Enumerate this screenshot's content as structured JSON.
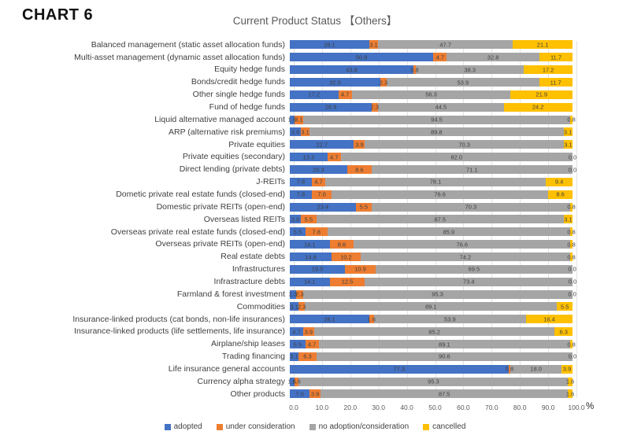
{
  "header": {
    "chart_label": "CHART 6",
    "title": "Current Product Status 【Others】"
  },
  "colors": {
    "adopted": "#4472C4",
    "under_consideration": "#ED7D31",
    "no_adoption_consideration": "#A5A5A5",
    "cancelled": "#FFC000"
  },
  "chart_data": {
    "type": "bar",
    "stacked": true,
    "orientation": "horizontal",
    "title": "Current Product Status 【Others】",
    "unit": "%",
    "xlim": [
      0,
      100
    ],
    "x_ticks": [
      0,
      10,
      20,
      30,
      40,
      50,
      60,
      70,
      80,
      90,
      100
    ],
    "x_tick_labels": [
      "0.0",
      "10.0",
      "20.0",
      "30.0",
      "40.0",
      "50.0",
      "60.0",
      "70.0",
      "80.0",
      "90.0",
      "100.0"
    ],
    "grid": true,
    "legend_position": "bottom",
    "value_labels": "one_decimal_inside_segments",
    "categories": [
      "Balanced management (static asset allocation funds)",
      "Multi-asset management (dynamic asset allocation funds)",
      "Equity hedge funds",
      "Bonds/credit hedge funds",
      "Other single hedge funds",
      "Fund of hedge funds",
      "Liquid alternative managed account",
      "ARP (alternative risk premiums)",
      "Private equities",
      "Private equities (secondary)",
      "Direct lending (private debts)",
      "J-REITs",
      "Dometic private real estate funds (closed-end)",
      "Domestic private REITs (open-end)",
      "Overseas listed REITs",
      "Overseas private real estate funds (closed-end)",
      "Overseas private REITs (open-end)",
      "Real estate debts",
      "Infrastructures",
      "Infrastracture debts",
      "Farmland & forest investment",
      "Commodities",
      "Insurance-linked products (cat bonds, non-life insurances)",
      "Insurance-linked products (life settlements, life insurance)",
      "Airplane/ship leases",
      "Trading financing",
      "Life insurance general accounts",
      "Currency alpha strategy",
      "Other products"
    ],
    "series": [
      {
        "name": "adopted",
        "key": "adopted",
        "color": "#4472C4",
        "values": [
          28.1,
          50.8,
          43.8,
          32.0,
          17.2,
          28.9,
          1.6,
          3.9,
          22.7,
          13.3,
          20.3,
          7.8,
          7.8,
          23.4,
          3.9,
          5.5,
          14.1,
          14.8,
          19.5,
          14.1,
          2.3,
          3.1,
          28.1,
          4.7,
          5.5,
          3.1,
          77.3,
          1.6,
          7.0
        ]
      },
      {
        "name": "under consideration",
        "key": "under-consideration",
        "color": "#ED7D31",
        "values": [
          3.1,
          4.7,
          0.8,
          2.3,
          4.7,
          2.3,
          3.1,
          3.1,
          3.9,
          4.7,
          8.6,
          4.7,
          7.0,
          5.5,
          5.5,
          7.8,
          8.6,
          10.2,
          10.9,
          12.5,
          2.3,
          2.3,
          1.6,
          3.9,
          4.7,
          6.3,
          0.8,
          1.6,
          3.9
        ]
      },
      {
        "name": "no adoption/consideration",
        "key": "no-adoption-consideration",
        "color": "#A5A5A5",
        "values": [
          47.7,
          32.8,
          38.3,
          53.9,
          56.3,
          44.5,
          94.5,
          89.8,
          70.3,
          82.0,
          71.1,
          78.1,
          76.6,
          70.3,
          87.5,
          85.9,
          76.6,
          74.2,
          69.5,
          73.4,
          95.3,
          89.1,
          53.9,
          85.2,
          89.1,
          90.6,
          18.0,
          95.3,
          87.5
        ]
      },
      {
        "name": "cancelled",
        "key": "cancelled",
        "color": "#FFC000",
        "values": [
          21.1,
          11.7,
          17.2,
          11.7,
          21.9,
          24.2,
          0.8,
          3.1,
          3.1,
          0.0,
          0.0,
          9.4,
          8.6,
          0.8,
          3.1,
          0.8,
          0.8,
          0.8,
          0.0,
          0.0,
          0.0,
          5.5,
          16.4,
          6.3,
          0.8,
          0.0,
          3.9,
          1.6,
          1.6
        ]
      }
    ]
  }
}
